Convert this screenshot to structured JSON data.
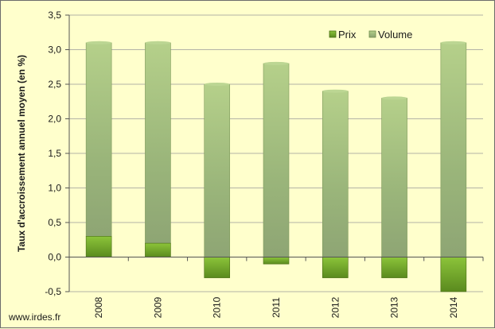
{
  "source": "www.irdes.fr",
  "chart_data": {
    "type": "bar",
    "stacked": true,
    "categories": [
      "2008",
      "2009",
      "2010",
      "2011",
      "2012",
      "2013",
      "2014"
    ],
    "series": [
      {
        "name": "Prix",
        "values": [
          0.3,
          0.2,
          -0.3,
          -0.1,
          -0.3,
          -0.3,
          -0.5
        ],
        "color": "#6e9e1c"
      },
      {
        "name": "Volume",
        "values": [
          2.8,
          2.9,
          2.5,
          2.8,
          2.4,
          2.3,
          3.1
        ],
        "color": "#a9c47a"
      }
    ],
    "totals": [
      3.1,
      3.1,
      2.5,
      2.8,
      2.4,
      2.3,
      3.1
    ],
    "ylabel": "Taux d'accroissement annuel moyen (en %)",
    "ylim": [
      -0.5,
      3.5
    ],
    "yticks": [
      "3,5",
      "3,0",
      "2,5",
      "2,0",
      "1,5",
      "1,0",
      "0,5",
      "0,0",
      "-0,5"
    ],
    "ytick_values": [
      3.5,
      3.0,
      2.5,
      2.0,
      1.5,
      1.0,
      0.5,
      0.0,
      -0.5
    ],
    "grid": true,
    "legend_position": "top-right"
  }
}
